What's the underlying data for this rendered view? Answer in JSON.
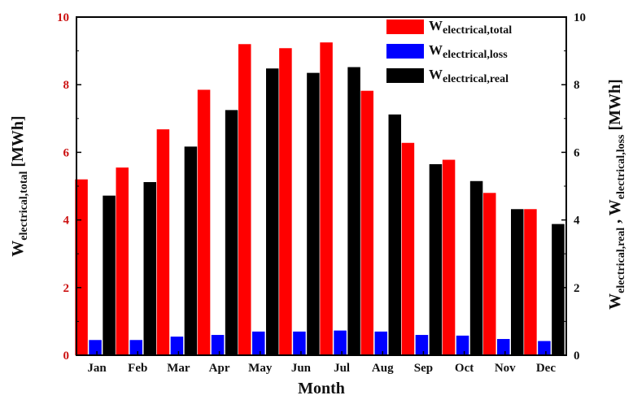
{
  "chart_data": {
    "type": "bar",
    "xlabel": "Month",
    "ylabel_left": {
      "main": "W",
      "sub": "electrical,total",
      "unit": " [MWh]"
    },
    "ylabel_right": {
      "main": "W",
      "sub": "electrical,real",
      "sep": " , W",
      "sub2": "electrical,loss",
      "unit": " [MWh]"
    },
    "categories": [
      "Jan",
      "Feb",
      "Mar",
      "Apr",
      "May",
      "Jun",
      "Jul",
      "Aug",
      "Sep",
      "Oct",
      "Nov",
      "Dec"
    ],
    "ylim": [
      0,
      10
    ],
    "yticks": [
      0,
      2,
      4,
      6,
      8,
      10
    ],
    "legend_position": "top-right",
    "grid": false,
    "series": [
      {
        "key": "total",
        "name_main": "W",
        "name_sub": "electrical,total",
        "color": "#ff0000",
        "axis": "left",
        "values": [
          5.2,
          5.55,
          6.68,
          7.85,
          9.2,
          9.08,
          9.25,
          7.82,
          6.28,
          5.78,
          4.8,
          4.32
        ]
      },
      {
        "key": "loss",
        "name_main": "W",
        "name_sub": "electrical,loss",
        "color": "#0000ff",
        "axis": "right",
        "values": [
          0.45,
          0.45,
          0.55,
          0.6,
          0.7,
          0.7,
          0.73,
          0.7,
          0.6,
          0.58,
          0.48,
          0.42
        ]
      },
      {
        "key": "real",
        "name_main": "W",
        "name_sub": "electrical,real",
        "color": "#000000",
        "axis": "right",
        "values": [
          4.72,
          5.12,
          6.17,
          7.25,
          8.48,
          8.35,
          8.52,
          7.12,
          5.65,
          5.15,
          4.32,
          3.88
        ]
      }
    ]
  }
}
